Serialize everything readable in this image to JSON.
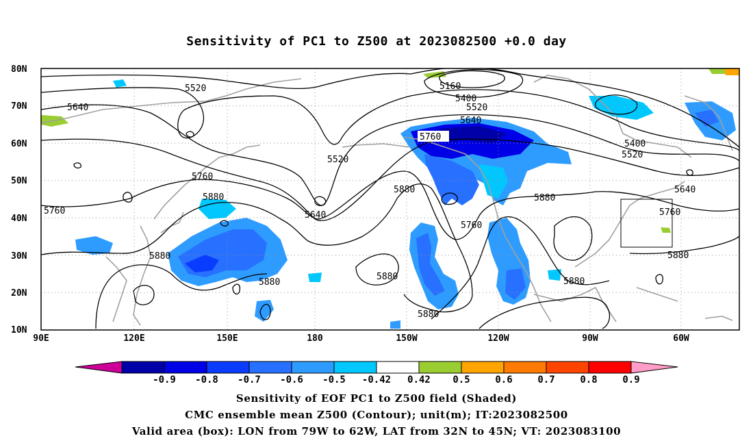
{
  "title": "Sensitivity of PC1 to Z500 at 2023082500 +0.0 day",
  "axes": {
    "lat_labels": [
      "80N",
      "70N",
      "60N",
      "50N",
      "40N",
      "30N",
      "20N",
      "10N"
    ],
    "lon_labels": [
      "90E",
      "120E",
      "150E",
      "180",
      "150W",
      "120W",
      "90W",
      "60W"
    ]
  },
  "contour_labels": [
    "5160",
    "5400",
    "5400",
    "5520",
    "5520",
    "5520",
    "5520",
    "5640",
    "5640",
    "5640",
    "5640",
    "5760",
    "5760",
    "5760",
    "5760",
    "5760",
    "5880",
    "5880",
    "5880",
    "5880",
    "5880",
    "5880",
    "5880",
    "5880"
  ],
  "colorbar": {
    "labels": [
      "-0.9",
      "-0.8",
      "-0.7",
      "-0.6",
      "-0.5",
      "-0.42",
      "0.42",
      "0.5",
      "0.6",
      "0.7",
      "0.8",
      "0.9"
    ],
    "colors": [
      "#0000a8",
      "#0000e6",
      "#0a3cff",
      "#2870ff",
      "#2e9cff",
      "#00c8ff",
      "#ffffff",
      "#9acd32",
      "#ffa500",
      "#ff7a00",
      "#ff4500",
      "#ff0000"
    ],
    "low_extend_color": "#cc0099",
    "high_extend_color": "#ff9cc8"
  },
  "captions": {
    "line1": "Sensitivity of EOF PC1 to Z500 field (Shaded)",
    "line2": "CMC ensemble mean Z500 (Contour); unit(m); IT:2023082500",
    "line3": "Valid area (box): LON from 79W to 62W, LAT from 32N to 45N; VT: 2023083100"
  }
}
